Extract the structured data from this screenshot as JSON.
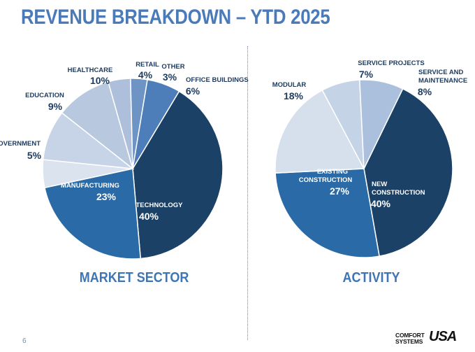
{
  "slide": {
    "title": "REVENUE BREAKDOWN – YTD 2025",
    "page_number": "6"
  },
  "logo": {
    "line1": "COMFORT",
    "line2": "SYSTEMS",
    "mark": "USA"
  },
  "colors": {
    "darkest": "#1c4166",
    "dark": "#2a6aa6",
    "mid": "#5584bd",
    "pale": "#c8d5e8",
    "title": "#4a7ab8"
  },
  "chart_data": [
    {
      "type": "pie",
      "title": "MARKET SECTOR",
      "slices": [
        {
          "label": "TECHNOLOGY",
          "value": 40,
          "pct": "40%"
        },
        {
          "label": "MANUFACTURING",
          "value": 23,
          "pct": "23%"
        },
        {
          "label": "GOVERNMENT",
          "value": 5,
          "pct": "5%"
        },
        {
          "label": "EDUCATION",
          "value": 9,
          "pct": "9%"
        },
        {
          "label": "HEALTHCARE",
          "value": 10,
          "pct": "10%"
        },
        {
          "label": "RETAIL",
          "value": 4,
          "pct": "4%"
        },
        {
          "label": "OTHER",
          "value": 3,
          "pct": "3%"
        },
        {
          "label": "OFFICE BUILDINGS",
          "value": 6,
          "pct": "6%"
        }
      ]
    },
    {
      "type": "pie",
      "title": "ACTIVITY",
      "slices": [
        {
          "label": "NEW CONSTRUCTION",
          "value": 40,
          "pct": "40%"
        },
        {
          "label": "EXISTING CONSTRUCTION",
          "value": 27,
          "pct": "27%"
        },
        {
          "label": "MODULAR",
          "value": 18,
          "pct": "18%"
        },
        {
          "label": "SERVICE PROJECTS",
          "value": 7,
          "pct": "7%"
        },
        {
          "label": "SERVICE AND MAINTENANCE",
          "value": 8,
          "pct": "8%"
        }
      ]
    }
  ]
}
